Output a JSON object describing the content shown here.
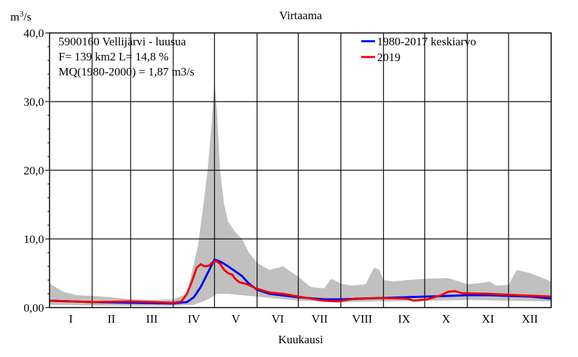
{
  "chart_data": {
    "type": "area",
    "title": "Virtaama",
    "xlabel": "Kuukausi",
    "ylabel_base": "m",
    "ylabel_sup": "3",
    "ylabel_tail": "/s",
    "ylim": [
      0,
      40
    ],
    "xlim": [
      0,
      365
    ],
    "y_ticks": [
      {
        "value": 0,
        "label": "0,00"
      },
      {
        "value": 10,
        "label": "10,0"
      },
      {
        "value": 20,
        "label": "20,0"
      },
      {
        "value": 30,
        "label": "30,0"
      },
      {
        "value": 40,
        "label": "40,0"
      }
    ],
    "months": [
      "I",
      "II",
      "III",
      "IV",
      "V",
      "VI",
      "VII",
      "VIII",
      "IX",
      "X",
      "XI",
      "XII"
    ],
    "month_days": [
      0,
      31,
      59,
      90,
      120,
      151,
      181,
      212,
      243,
      273,
      304,
      334,
      365
    ],
    "info": {
      "line1": "5900160 Vellijärvi - luusua",
      "line2": "F=    139 km2 L=  14,8 %",
      "line3": "MQ(1980-2000) = 1,87 m3/s"
    },
    "legend": [
      {
        "name": "1980-2017 keskiarvo",
        "color": "#0000ee"
      },
      {
        "name": "2019",
        "color": "#ee0000"
      }
    ],
    "colors": {
      "envelope": "#c0c0c0",
      "grid": "#000000",
      "average": "#0000ee",
      "year2019": "#ee0000"
    },
    "series": [
      {
        "name": "envelope-max",
        "x": [
          0,
          10,
          20,
          31,
          45,
          59,
          75,
          90,
          100,
          108,
          112,
          115,
          118,
          120,
          122,
          124,
          127,
          130,
          135,
          140,
          145,
          151,
          160,
          170,
          181,
          190,
          200,
          205,
          212,
          220,
          230,
          236,
          240,
          243,
          250,
          260,
          273,
          290,
          304,
          315,
          320,
          325,
          334,
          340,
          350,
          365
        ],
        "values": [
          3.5,
          2.3,
          1.8,
          1.7,
          1.5,
          1.2,
          1.1,
          1.2,
          2.0,
          9.0,
          15.0,
          20.0,
          27.0,
          33.0,
          28.0,
          20.0,
          15.0,
          12.5,
          11.0,
          10.0,
          8.0,
          6.5,
          5.5,
          6.0,
          4.5,
          3.0,
          2.8,
          4.2,
          3.5,
          3.2,
          3.4,
          5.8,
          5.5,
          4.0,
          3.8,
          4.0,
          4.2,
          4.3,
          3.4,
          3.6,
          3.8,
          3.2,
          3.3,
          5.5,
          5.0,
          3.8
        ]
      },
      {
        "name": "envelope-min",
        "x": [
          0,
          31,
          59,
          90,
          105,
          112,
          118,
          122,
          130,
          140,
          151,
          170,
          181,
          212,
          243,
          273,
          304,
          334,
          365
        ],
        "values": [
          0.4,
          0.3,
          0.25,
          0.25,
          0.4,
          0.9,
          1.5,
          2.0,
          2.0,
          1.8,
          1.6,
          1.2,
          1.0,
          0.8,
          0.9,
          1.0,
          1.1,
          1.0,
          0.9
        ]
      },
      {
        "name": "1980-2017 keskiarvo",
        "x": [
          0,
          31,
          59,
          90,
          100,
          105,
          110,
          115,
          118,
          120,
          123,
          126,
          130,
          135,
          140,
          145,
          151,
          160,
          181,
          200,
          212,
          243,
          273,
          290,
          304,
          320,
          334,
          350,
          365
        ],
        "values": [
          1.0,
          0.8,
          0.7,
          0.6,
          0.8,
          1.5,
          3.0,
          5.0,
          6.2,
          7.0,
          6.8,
          6.5,
          6.0,
          5.3,
          4.6,
          3.5,
          2.6,
          2.0,
          1.5,
          1.2,
          1.2,
          1.4,
          1.6,
          1.7,
          1.8,
          1.8,
          1.7,
          1.6,
          1.3
        ]
      },
      {
        "name": "2019",
        "x": [
          0,
          31,
          59,
          90,
          96,
          100,
          104,
          107,
          110,
          113,
          116,
          118,
          121,
          124,
          127,
          130,
          133,
          135,
          138,
          142,
          145,
          150,
          155,
          160,
          170,
          181,
          200,
          210,
          222,
          240,
          260,
          265,
          275,
          285,
          290,
          295,
          300,
          320,
          340,
          365
        ],
        "values": [
          1.0,
          0.8,
          0.9,
          0.7,
          0.9,
          2.0,
          4.0,
          5.8,
          6.3,
          6.0,
          6.1,
          6.5,
          6.8,
          6.4,
          5.5,
          5.0,
          4.8,
          4.2,
          3.7,
          3.5,
          3.3,
          2.8,
          2.5,
          2.2,
          2.0,
          1.6,
          1.0,
          0.9,
          1.3,
          1.4,
          1.3,
          1.0,
          1.2,
          1.8,
          2.3,
          2.4,
          2.1,
          2.0,
          1.8,
          1.6
        ]
      }
    ]
  }
}
